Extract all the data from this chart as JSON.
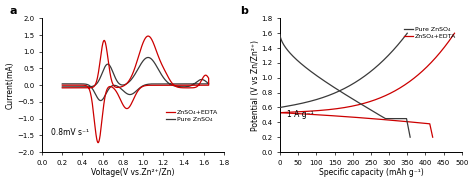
{
  "panel_a": {
    "title": "a",
    "xlabel": "Voltage(V vs.Zn²⁺/Zn)",
    "ylabel": "Current(mA)",
    "xlim": [
      0.0,
      1.8
    ],
    "ylim": [
      -2.0,
      2.0
    ],
    "xticks": [
      0.0,
      0.2,
      0.4,
      0.6,
      0.8,
      1.0,
      1.2,
      1.4,
      1.6,
      1.8
    ],
    "yticks": [
      -2.0,
      -1.5,
      -1.0,
      -0.5,
      0.0,
      0.5,
      1.0,
      1.5,
      2.0
    ],
    "annotation": "0.8mV s⁻¹",
    "legend_edta": "ZnSO₄+EDTA",
    "legend_pure": "Pure ZnSO₄",
    "color_edta": "#cc0000",
    "color_pure": "#3a3a3a",
    "bg_color": "#ffffff"
  },
  "panel_b": {
    "title": "b",
    "xlabel": "Specific capacity (mAh g⁻¹)",
    "ylabel": "Potential (V vs Zn/Zn²⁺)",
    "xlim": [
      0,
      500
    ],
    "ylim": [
      0.0,
      1.8
    ],
    "xticks": [
      0,
      50,
      100,
      150,
      200,
      250,
      300,
      350,
      400,
      450,
      500
    ],
    "yticks": [
      0.0,
      0.2,
      0.4,
      0.6,
      0.8,
      1.0,
      1.2,
      1.4,
      1.6,
      1.8
    ],
    "annotation": "1 A g⁻¹",
    "legend_pure": "Pure ZnSO₄",
    "legend_edta": "ZnSO₄+EDTA",
    "color_edta": "#cc0000",
    "color_pure": "#3a3a3a",
    "bg_color": "#ffffff"
  }
}
